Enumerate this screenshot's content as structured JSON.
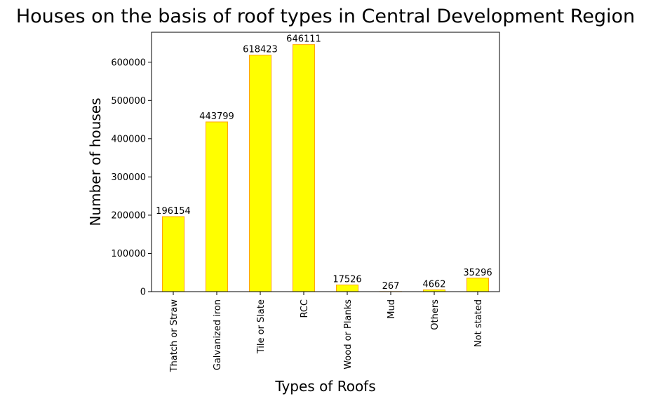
{
  "chart_data": {
    "type": "bar",
    "title": "Houses on the basis of roof types in Central Development Region",
    "xlabel": "Types of Roofs",
    "ylabel": "Number of houses",
    "categories": [
      "Thatch or Straw",
      "Galvanized iron",
      "Tile or Slate",
      "RCC",
      "Wood or Planks",
      "Mud",
      "Others",
      "Not stated"
    ],
    "values": [
      196154,
      443799,
      618423,
      646111,
      17526,
      267,
      4662,
      35296
    ],
    "data_labels": [
      "196154",
      "443799",
      "618423",
      "646111",
      "17526",
      "267",
      "4662",
      "35296"
    ],
    "yticks": [
      0,
      100000,
      200000,
      300000,
      400000,
      500000,
      600000
    ],
    "ytick_labels": [
      "0",
      "100000",
      "200000",
      "300000",
      "400000",
      "500000",
      "600000"
    ],
    "ylim": [
      0,
      678417
    ],
    "grid": false,
    "legend": "none",
    "colors": {
      "bar_fill": "#ffff00",
      "bar_edge": "#ffa500",
      "axis": "#000000",
      "text": "#000000"
    }
  }
}
